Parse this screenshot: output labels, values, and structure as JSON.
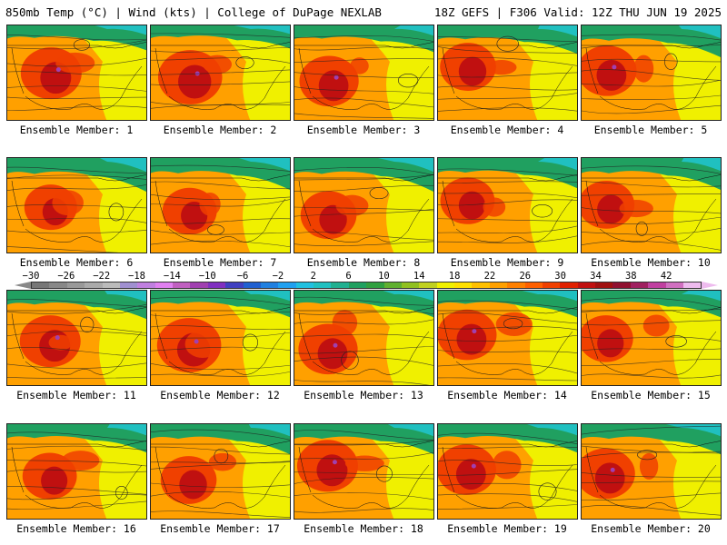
{
  "header": {
    "left": "850mb Temp (°C) | Wind (kts) | College of DuPage NEXLAB",
    "right": "18Z GEFS | F306 Valid: 12Z THU JUN 19 2025"
  },
  "caption_prefix": "Ensemble Member:",
  "members": [
    {
      "number": "1",
      "hot": 0.75,
      "cool": 0.25
    },
    {
      "number": "2",
      "hot": 0.85,
      "cool": 0.2
    },
    {
      "number": "3",
      "hot": 0.7,
      "cool": 0.3
    },
    {
      "number": "4",
      "hot": 0.6,
      "cool": 0.35
    },
    {
      "number": "5",
      "hot": 0.7,
      "cool": 0.45
    },
    {
      "number": "6",
      "hot": 0.5,
      "cool": 0.5
    },
    {
      "number": "7",
      "hot": 0.55,
      "cool": 0.45
    },
    {
      "number": "8",
      "hot": 0.6,
      "cool": 0.5
    },
    {
      "number": "9",
      "hot": 0.55,
      "cool": 0.4
    },
    {
      "number": "10",
      "hot": 0.6,
      "cool": 0.45
    },
    {
      "number": "11",
      "hot": 0.75,
      "cool": 0.35
    },
    {
      "number": "12",
      "hot": 0.85,
      "cool": 0.3
    },
    {
      "number": "13",
      "hot": 0.7,
      "cool": 0.3
    },
    {
      "number": "14",
      "hot": 0.7,
      "cool": 0.3
    },
    {
      "number": "15",
      "hot": 0.55,
      "cool": 0.3
    },
    {
      "number": "16",
      "hot": 0.55,
      "cool": 0.35
    },
    {
      "number": "17",
      "hot": 0.6,
      "cool": 0.4
    },
    {
      "number": "18",
      "hot": 0.75,
      "cool": 0.4
    },
    {
      "number": "19",
      "hot": 0.7,
      "cool": 0.35
    },
    {
      "number": "20",
      "hot": 0.7,
      "cool": 0.4
    }
  ],
  "colorbar": {
    "labels": [
      "−30",
      "−26",
      "−22",
      "−18",
      "−14",
      "−10",
      "−6",
      "−2",
      "2",
      "6",
      "10",
      "14",
      "18",
      "22",
      "26",
      "30",
      "34",
      "38",
      "42"
    ],
    "colors": [
      "#777777",
      "#888888",
      "#999999",
      "#aaaaaa",
      "#bbbbbb",
      "#a090d0",
      "#c080e0",
      "#e080f0",
      "#c060c0",
      "#a040b0",
      "#8030c0",
      "#4040c0",
      "#2060d0",
      "#2080e0",
      "#20a0f0",
      "#20c0e0",
      "#20c0c0",
      "#20b090",
      "#20a060",
      "#30a040",
      "#60b030",
      "#90c020",
      "#c0d020",
      "#f0f000",
      "#ffe000",
      "#ffc000",
      "#ffa000",
      "#ff8000",
      "#ff6000",
      "#f04000",
      "#e02000",
      "#c01010",
      "#a01010",
      "#901030",
      "#a02060",
      "#c040a0",
      "#d070c0",
      "#eebbee"
    ]
  },
  "palette": {
    "cool": "#20a060",
    "teal": "#20c0c0",
    "mid": "#f0f000",
    "warm": "#ffa000",
    "hot": "#f04000",
    "extreme": "#c01010",
    "purple": "#a040b0"
  }
}
